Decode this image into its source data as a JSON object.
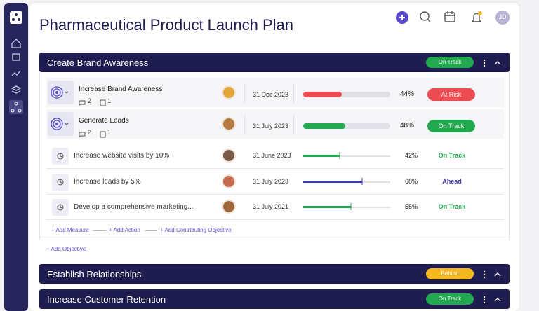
{
  "header": {
    "title": "Pharmaceutical Product Launch Plan",
    "avatar": "JD"
  },
  "sections": [
    {
      "title": "Create Brand Awareness",
      "status": "On Track",
      "objectives": [
        {
          "title": "Increase Brand Awareness",
          "comments": 2,
          "attachments": 1,
          "date": "31 Dec 2023",
          "progress": {
            "value": 44,
            "label": "44%"
          },
          "status": "At Risk"
        },
        {
          "title": "Generate Leads",
          "comments": 2,
          "attachments": 1,
          "date": "31 July 2023",
          "progress": {
            "value": 48,
            "label": "48%"
          },
          "status": "On Track"
        }
      ],
      "key_results": [
        {
          "title": "Increase website visits by 10%",
          "date": "31 June 2023",
          "progress": {
            "value": 42,
            "label": "42%"
          },
          "status": "On Track"
        },
        {
          "title": "Increase leads by 5%",
          "date": "31 July 2023",
          "progress": {
            "value": 68,
            "label": "68%"
          },
          "status": "Ahead"
        },
        {
          "title": "Develop a comprehensive marketing...",
          "date": "31 July 2021",
          "progress": {
            "value": 55,
            "label": "55%"
          },
          "status": "On Track"
        }
      ],
      "actions": [
        "+ Add Measure",
        "+ Add Action",
        "+ Add Contributing Objective"
      ],
      "add_objective": "+ Add Objective"
    },
    {
      "title": "Establish Relationships",
      "status": "Behind"
    },
    {
      "title": "Increase Customer Retention",
      "status": "On Track"
    }
  ]
}
